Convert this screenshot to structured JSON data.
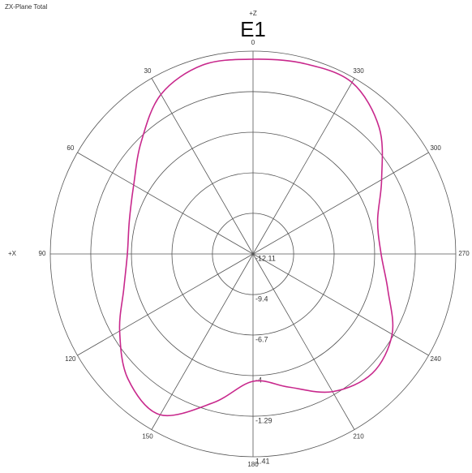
{
  "chart_data": {
    "type": "polar",
    "header": "ZX-Plane Total",
    "title": "E1",
    "top_axis_label": "+Z",
    "left_axis_label": "+X",
    "angles": [
      0,
      15,
      30,
      45,
      60,
      75,
      90,
      105,
      120,
      135,
      150,
      165,
      180,
      195,
      210,
      225,
      240,
      255,
      270,
      285,
      300,
      315,
      330,
      345
    ],
    "series": [
      {
        "name": "E1",
        "color": "#c8288c",
        "values": [
          0.87,
          0.92,
          0.17,
          -1.56,
          -2.92,
          -3.57,
          -3.73,
          -3.19,
          -1.84,
          -0.32,
          0.27,
          -1.84,
          -3.62,
          -2.92,
          -1.51,
          -0.86,
          -1.4,
          -2.8,
          -3.57,
          -3.51,
          -2.21,
          -0.21,
          1.09,
          1.03
        ]
      }
    ],
    "rlim": [
      -12.11,
      1.41
    ],
    "rticks": [
      -12.11,
      -9.4,
      -6.7,
      -4,
      -1.29,
      1.41
    ],
    "thetaticks": [
      0,
      30,
      60,
      90,
      120,
      150,
      180,
      210,
      240,
      270,
      300,
      330
    ],
    "theta_zero": "top",
    "theta_direction": "counterclockwise"
  }
}
